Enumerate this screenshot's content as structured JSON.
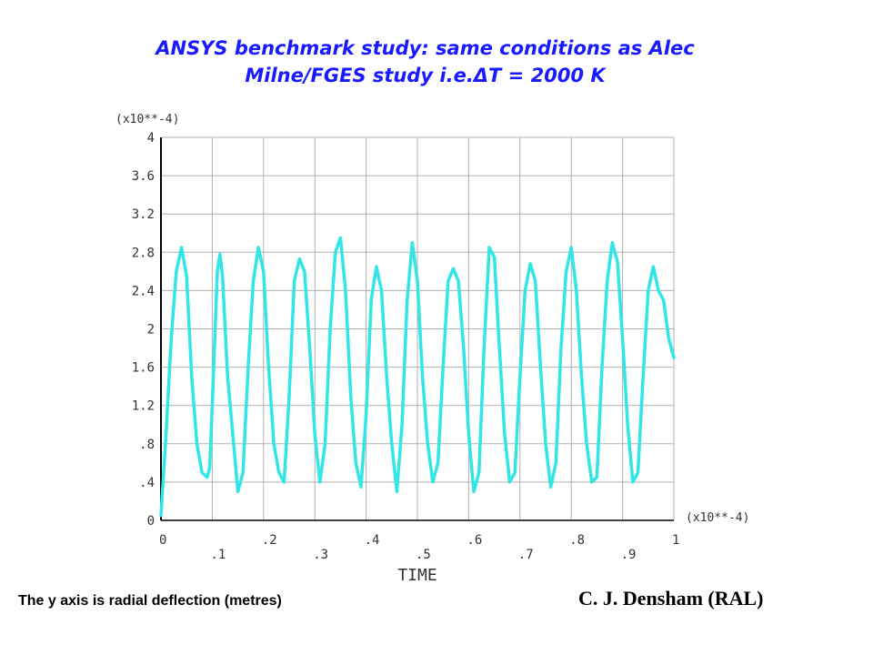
{
  "slide": {
    "title_line1": "ANSYS benchmark study: same conditions as Alec",
    "title_line2": "Milne/FGES study i.e.ΔT = 2000 K",
    "caption": "The y axis is radial deflection (metres)",
    "author": "C. J. Densham (RAL)"
  },
  "chart_data": {
    "type": "line",
    "title": "",
    "xlabel": "TIME",
    "ylabel": "",
    "x_multiplier_label": "(x10**-4)",
    "y_multiplier_label": "(x10**-4)",
    "xlim": [
      0,
      1
    ],
    "ylim": [
      0,
      4
    ],
    "x_ticks": [
      "0",
      ".1",
      ".2",
      ".3",
      ".4",
      ".5",
      ".6",
      ".7",
      ".8",
      ".9",
      "1"
    ],
    "y_ticks": [
      "0",
      ".4",
      ".8",
      "1.2",
      "1.6",
      "2",
      "2.4",
      "2.8",
      "3.2",
      "3.6",
      "4"
    ],
    "grid": true,
    "line_color": "#33e6e6",
    "series": [
      {
        "x": [
          0,
          0.01,
          0.02,
          0.03,
          0.04,
          0.05,
          0.06,
          0.07,
          0.08,
          0.09,
          0.095,
          0.1,
          0.11,
          0.115,
          0.12,
          0.13,
          0.14,
          0.15,
          0.16,
          0.17,
          0.18,
          0.19,
          0.2,
          0.21,
          0.22,
          0.23,
          0.24,
          0.25,
          0.26,
          0.27,
          0.28,
          0.29,
          0.3,
          0.31,
          0.32,
          0.33,
          0.34,
          0.35,
          0.36,
          0.37,
          0.38,
          0.39,
          0.4,
          0.41,
          0.42,
          0.43,
          0.44,
          0.45,
          0.46,
          0.47,
          0.48,
          0.49,
          0.5,
          0.51,
          0.52,
          0.53,
          0.54,
          0.55,
          0.56,
          0.57,
          0.58,
          0.59,
          0.6,
          0.61,
          0.62,
          0.63,
          0.64,
          0.65,
          0.66,
          0.67,
          0.68,
          0.69,
          0.7,
          0.71,
          0.72,
          0.73,
          0.74,
          0.75,
          0.76,
          0.77,
          0.78,
          0.79,
          0.8,
          0.81,
          0.82,
          0.83,
          0.84,
          0.85,
          0.86,
          0.87,
          0.88,
          0.89,
          0.9,
          0.91,
          0.92,
          0.93,
          0.94,
          0.95,
          0.96,
          0.97,
          0.98,
          0.99,
          1.0
        ],
        "y": [
          0.05,
          0.9,
          1.9,
          2.6,
          2.85,
          2.55,
          1.5,
          0.8,
          0.5,
          0.45,
          0.55,
          1.2,
          2.6,
          2.78,
          2.55,
          1.5,
          0.9,
          0.3,
          0.5,
          1.6,
          2.5,
          2.85,
          2.6,
          1.6,
          0.8,
          0.5,
          0.4,
          1.3,
          2.5,
          2.73,
          2.6,
          1.8,
          0.9,
          0.4,
          0.8,
          2.0,
          2.8,
          2.95,
          2.4,
          1.3,
          0.6,
          0.35,
          1.1,
          2.3,
          2.65,
          2.4,
          1.5,
          0.8,
          0.3,
          1.0,
          2.3,
          2.9,
          2.5,
          1.5,
          0.8,
          0.4,
          0.6,
          1.6,
          2.5,
          2.63,
          2.5,
          1.8,
          0.9,
          0.3,
          0.5,
          1.8,
          2.85,
          2.75,
          1.8,
          0.9,
          0.4,
          0.5,
          1.5,
          2.4,
          2.68,
          2.5,
          1.6,
          0.8,
          0.35,
          0.6,
          1.8,
          2.6,
          2.85,
          2.4,
          1.5,
          0.8,
          0.4,
          0.45,
          1.6,
          2.5,
          2.9,
          2.7,
          1.9,
          1.0,
          0.4,
          0.5,
          1.5,
          2.4,
          2.65,
          2.4,
          2.3,
          1.9,
          1.7
        ]
      }
    ]
  }
}
